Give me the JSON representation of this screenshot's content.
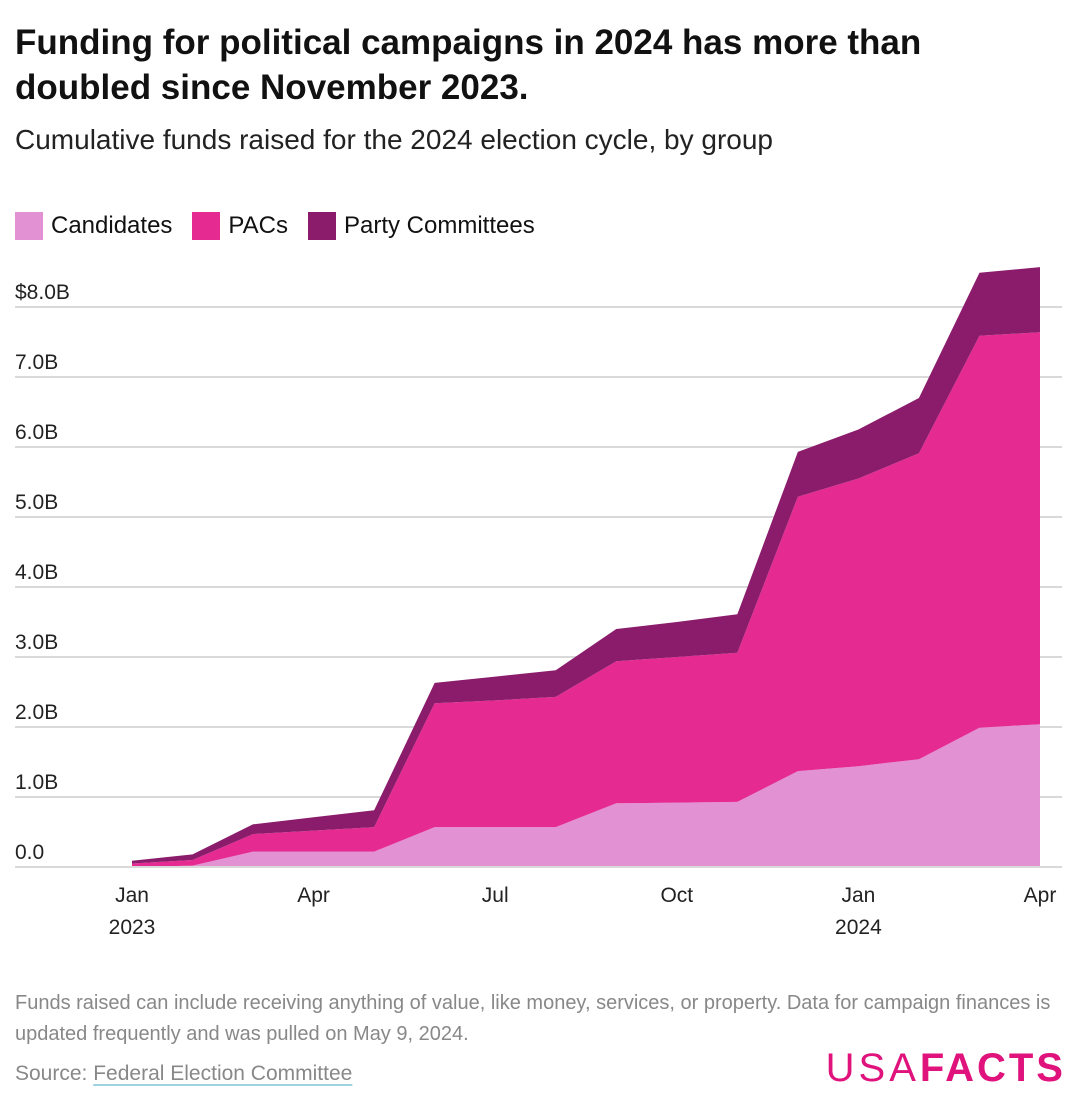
{
  "header": {
    "title": "Funding for political campaigns in 2024 has more than doubled since November 2023.",
    "subtitle": "Cumulative funds raised for the 2024 election cycle, by group"
  },
  "footer": {
    "note": "Funds raised can include receiving anything of value, like money, services, or property. Data for campaign finances is updated frequently and was pulled on May 9, 2024.",
    "source_label": "Source: ",
    "source_link": "Federal Election Committee",
    "logo_thin": "USA",
    "logo_bold": "FACTS"
  },
  "chart_data": {
    "type": "area",
    "stacked": true,
    "title": "Funding for political campaigns in 2024 has more than doubled since November 2023.",
    "subtitle": "Cumulative funds raised for the 2024 election cycle, by group",
    "x": [
      "2023-01",
      "2023-02",
      "2023-03",
      "2023-04",
      "2023-05",
      "2023-06",
      "2023-07",
      "2023-08",
      "2023-09",
      "2023-10",
      "2023-11",
      "2023-12",
      "2024-01",
      "2024-02",
      "2024-03",
      "2024-04"
    ],
    "x_ticks": [
      {
        "index": 0,
        "label": "Jan",
        "sub": "2023"
      },
      {
        "index": 3,
        "label": "Apr",
        "sub": ""
      },
      {
        "index": 6,
        "label": "Jul",
        "sub": ""
      },
      {
        "index": 9,
        "label": "Oct",
        "sub": ""
      },
      {
        "index": 12,
        "label": "Jan",
        "sub": "2024"
      },
      {
        "index": 15,
        "label": "Apr",
        "sub": ""
      }
    ],
    "y_ticks": [
      {
        "value": 0,
        "label": "0.0"
      },
      {
        "value": 1,
        "label": "1.0B"
      },
      {
        "value": 2,
        "label": "2.0B"
      },
      {
        "value": 3,
        "label": "3.0B"
      },
      {
        "value": 4,
        "label": "4.0B"
      },
      {
        "value": 5,
        "label": "5.0B"
      },
      {
        "value": 6,
        "label": "6.0B"
      },
      {
        "value": 7,
        "label": "7.0B"
      },
      {
        "value": 8,
        "label": "$8.0B"
      }
    ],
    "ylim": [
      0,
      8.6
    ],
    "y_unit": "billions USD",
    "xlabel": "",
    "ylabel": "",
    "grid": true,
    "legend_position": "top-left",
    "series": [
      {
        "name": "Candidates",
        "color": "#e291d2",
        "values": [
          0,
          0.02,
          0.22,
          0.22,
          0.22,
          0.57,
          0.57,
          0.57,
          0.91,
          0.92,
          0.93,
          1.37,
          1.44,
          1.54,
          1.99,
          2.04
        ]
      },
      {
        "name": "PACs",
        "color": "#e52a92",
        "values": [
          0.05,
          0.08,
          0.25,
          0.3,
          0.35,
          1.77,
          1.81,
          1.86,
          2.03,
          2.08,
          2.13,
          3.92,
          4.11,
          4.37,
          5.6,
          5.6
        ]
      },
      {
        "name": "Party Committees",
        "color": "#8a1c6b",
        "values": [
          0.04,
          0.08,
          0.14,
          0.19,
          0.24,
          0.29,
          0.34,
          0.38,
          0.46,
          0.5,
          0.55,
          0.64,
          0.7,
          0.79,
          0.9,
          0.93
        ]
      }
    ]
  }
}
